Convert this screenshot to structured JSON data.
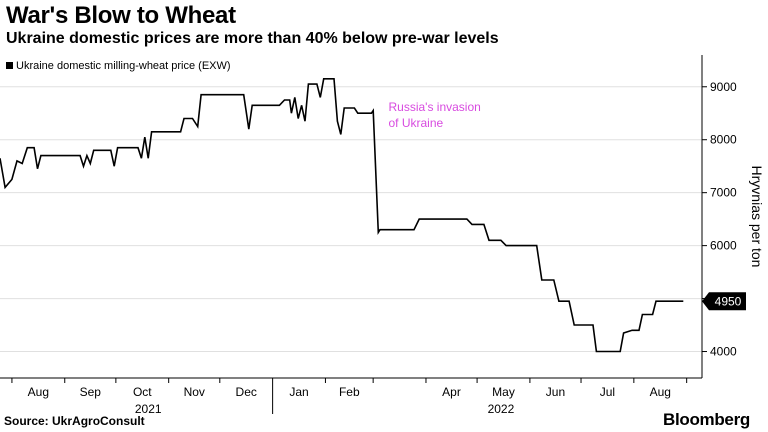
{
  "title": "War's Blow to Wheat",
  "subtitle": "Ukraine domestic prices are more than 40% below pre-war levels",
  "source": "Source: UkrAgroConsult",
  "brand": "Bloomberg",
  "colors": {
    "line": "#000000",
    "annotation": "#d84be0",
    "grid": "#e0e0e0",
    "axis": "#000000",
    "last_value_bg": "#000000",
    "last_value_text": "#ffffff"
  },
  "chart_data": {
    "type": "line",
    "title": "War's Blow to Wheat",
    "subtitle": "Ukraine domestic prices are more than 40% below pre-war levels",
    "ylabel": "Hryvnias per ton",
    "ylim": [
      3500,
      9600
    ],
    "xlim": [
      "2021-07-25",
      "2022-09-10"
    ],
    "y_ticks": [
      4000,
      5000,
      6000,
      7000,
      8000,
      9000
    ],
    "y_tick_labels": [
      "4000",
      "",
      "6000",
      "7000",
      "8000",
      "9000"
    ],
    "x_ticks": [
      {
        "date": "2021-08-01",
        "label": "Aug"
      },
      {
        "date": "2021-09-01",
        "label": "Sep"
      },
      {
        "date": "2021-10-01",
        "label": "Oct"
      },
      {
        "date": "2021-11-01",
        "label": "Nov"
      },
      {
        "date": "2021-12-01",
        "label": "Dec"
      },
      {
        "date": "2022-01-01",
        "label": "Jan"
      },
      {
        "date": "2022-02-01",
        "label": "Feb"
      },
      {
        "date": "2022-04-01",
        "label": "Apr"
      },
      {
        "date": "2022-05-01",
        "label": "May"
      },
      {
        "date": "2022-06-01",
        "label": "Jun"
      },
      {
        "date": "2022-07-01",
        "label": "Jul"
      },
      {
        "date": "2022-08-01",
        "label": "Aug"
      }
    ],
    "year_labels": [
      {
        "date": "2021-10-20",
        "label": "2021"
      },
      {
        "date": "2022-05-15",
        "label": "2022"
      }
    ],
    "grid": true,
    "legend": {
      "position": "top-left",
      "entries": [
        "Ukraine domestic milling-wheat price (EXW)"
      ]
    },
    "last_value_label": "4950",
    "annotations": [
      {
        "date": "2022-03-10",
        "value": 8600,
        "text": [
          "Russia's invasion",
          "of Ukraine"
        ]
      }
    ],
    "series": [
      {
        "name": "Ukraine domestic milling-wheat price (EXW)",
        "points": [
          [
            "2021-07-25",
            7650
          ],
          [
            "2021-07-28",
            7100
          ],
          [
            "2021-08-01",
            7250
          ],
          [
            "2021-08-04",
            7600
          ],
          [
            "2021-08-07",
            7550
          ],
          [
            "2021-08-10",
            7850
          ],
          [
            "2021-08-14",
            7850
          ],
          [
            "2021-08-16",
            7450
          ],
          [
            "2021-08-18",
            7700
          ],
          [
            "2021-09-10",
            7700
          ],
          [
            "2021-09-12",
            7500
          ],
          [
            "2021-09-14",
            7700
          ],
          [
            "2021-09-16",
            7550
          ],
          [
            "2021-09-18",
            7800
          ],
          [
            "2021-09-28",
            7800
          ],
          [
            "2021-09-30",
            7500
          ],
          [
            "2021-10-02",
            7850
          ],
          [
            "2021-10-14",
            7850
          ],
          [
            "2021-10-16",
            7650
          ],
          [
            "2021-10-18",
            8050
          ],
          [
            "2021-10-20",
            7650
          ],
          [
            "2021-10-22",
            8150
          ],
          [
            "2021-11-08",
            8150
          ],
          [
            "2021-11-10",
            8400
          ],
          [
            "2021-11-15",
            8400
          ],
          [
            "2021-11-18",
            8250
          ],
          [
            "2021-11-20",
            8850
          ],
          [
            "2021-12-15",
            8850
          ],
          [
            "2021-12-18",
            8200
          ],
          [
            "2021-12-20",
            8650
          ],
          [
            "2022-01-05",
            8650
          ],
          [
            "2022-01-08",
            8750
          ],
          [
            "2022-01-11",
            8750
          ],
          [
            "2022-01-12",
            8500
          ],
          [
            "2022-01-14",
            8800
          ],
          [
            "2022-01-16",
            8400
          ],
          [
            "2022-01-18",
            8650
          ],
          [
            "2022-01-20",
            8350
          ],
          [
            "2022-01-22",
            9050
          ],
          [
            "2022-01-27",
            9050
          ],
          [
            "2022-01-29",
            8800
          ],
          [
            "2022-01-31",
            9150
          ],
          [
            "2022-02-06",
            9150
          ],
          [
            "2022-02-08",
            8350
          ],
          [
            "2022-02-10",
            8100
          ],
          [
            "2022-02-12",
            8600
          ],
          [
            "2022-02-18",
            8600
          ],
          [
            "2022-02-20",
            8500
          ],
          [
            "2022-02-28",
            8500
          ],
          [
            "2022-03-01",
            8550
          ],
          [
            "2022-03-04",
            6250
          ],
          [
            "2022-03-05",
            6300
          ],
          [
            "2022-03-25",
            6300
          ],
          [
            "2022-03-28",
            6500
          ],
          [
            "2022-04-25",
            6500
          ],
          [
            "2022-04-28",
            6400
          ],
          [
            "2022-05-05",
            6400
          ],
          [
            "2022-05-08",
            6100
          ],
          [
            "2022-05-15",
            6100
          ],
          [
            "2022-05-18",
            6000
          ],
          [
            "2022-06-05",
            6000
          ],
          [
            "2022-06-08",
            5350
          ],
          [
            "2022-06-15",
            5350
          ],
          [
            "2022-06-18",
            4950
          ],
          [
            "2022-06-24",
            4950
          ],
          [
            "2022-06-27",
            4500
          ],
          [
            "2022-07-08",
            4500
          ],
          [
            "2022-07-10",
            4000
          ],
          [
            "2022-07-24",
            4000
          ],
          [
            "2022-07-26",
            4350
          ],
          [
            "2022-07-31",
            4400
          ],
          [
            "2022-08-04",
            4400
          ],
          [
            "2022-08-06",
            4700
          ],
          [
            "2022-08-12",
            4700
          ],
          [
            "2022-08-14",
            4950
          ],
          [
            "2022-08-30",
            4950
          ]
        ]
      }
    ]
  }
}
